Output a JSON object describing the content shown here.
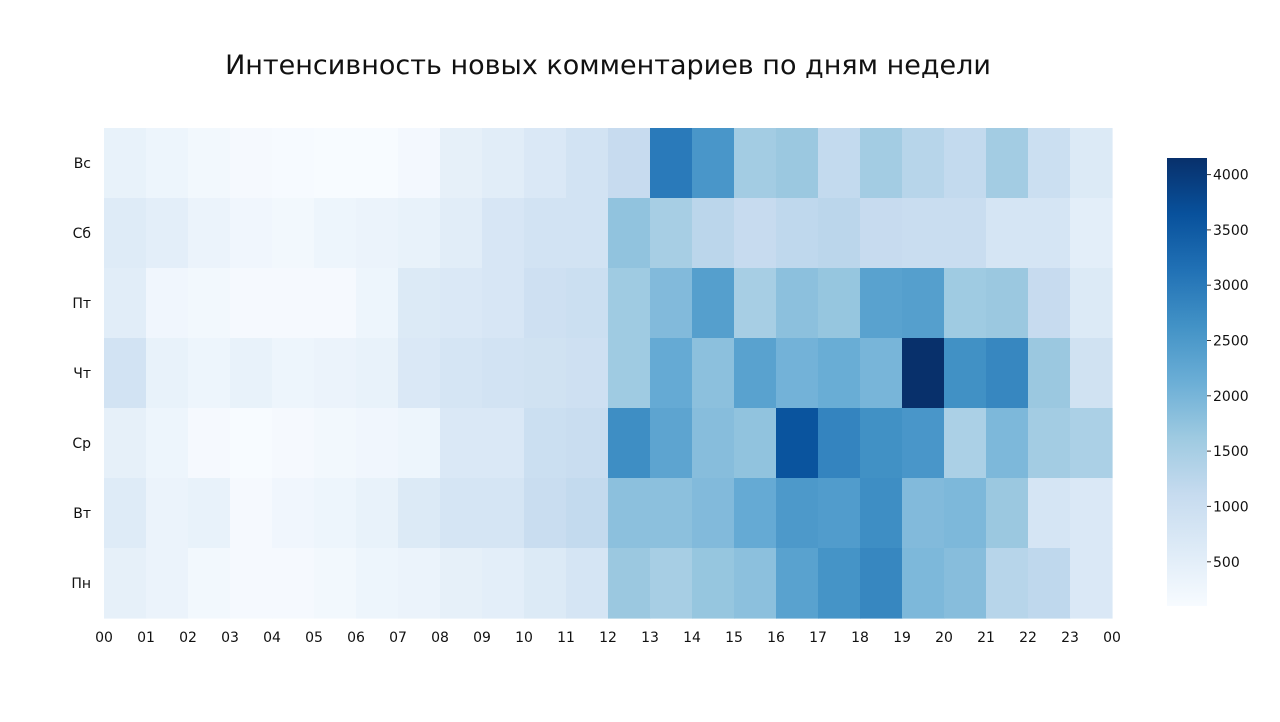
{
  "chart_data": {
    "type": "heatmap",
    "title": "Интенсивность новых комментариев по дням недели",
    "xlabel": "",
    "ylabel": "",
    "x_tick_labels": [
      "00",
      "01",
      "02",
      "03",
      "04",
      "05",
      "06",
      "07",
      "08",
      "09",
      "10",
      "11",
      "12",
      "13",
      "14",
      "15",
      "16",
      "17",
      "18",
      "19",
      "20",
      "21",
      "22",
      "23",
      "00"
    ],
    "rows": [
      "Вс",
      "Сб",
      "Пт",
      "Чт",
      "Ср",
      "Вт",
      "Пн"
    ],
    "columns": [
      "00",
      "01",
      "02",
      "03",
      "04",
      "05",
      "06",
      "07",
      "08",
      "09",
      "10",
      "11",
      "12",
      "13",
      "14",
      "15",
      "16",
      "17",
      "18",
      "19",
      "20",
      "21",
      "22",
      "23"
    ],
    "values": [
      [
        400,
        300,
        200,
        150,
        120,
        100,
        100,
        180,
        450,
        550,
        700,
        850,
        1100,
        3000,
        2550,
        1550,
        1650,
        1150,
        1550,
        1300,
        1150,
        1550,
        1000,
        650
      ],
      [
        600,
        500,
        350,
        250,
        200,
        300,
        350,
        400,
        550,
        750,
        850,
        850,
        1750,
        1500,
        1250,
        1100,
        1200,
        1250,
        1100,
        1050,
        1050,
        800,
        800,
        500
      ],
      [
        550,
        250,
        200,
        150,
        150,
        150,
        300,
        650,
        700,
        750,
        950,
        1000,
        1600,
        1900,
        2400,
        1500,
        1800,
        1700,
        2350,
        2400,
        1600,
        1650,
        1100,
        650
      ],
      [
        850,
        400,
        300,
        400,
        300,
        350,
        400,
        700,
        800,
        850,
        900,
        950,
        1600,
        2200,
        1800,
        2350,
        2050,
        2150,
        2000,
        4150,
        2650,
        2800,
        1650,
        900
      ],
      [
        450,
        300,
        150,
        100,
        150,
        200,
        250,
        300,
        700,
        700,
        1000,
        1050,
        2700,
        2300,
        1850,
        1750,
        3600,
        2850,
        2650,
        2550,
        1450,
        1950,
        1550,
        1450
      ],
      [
        600,
        350,
        400,
        150,
        250,
        300,
        400,
        650,
        800,
        800,
        1050,
        1150,
        1800,
        1800,
        1900,
        2200,
        2500,
        2450,
        2700,
        1900,
        1950,
        1650,
        800,
        700
      ],
      [
        450,
        350,
        200,
        150,
        150,
        200,
        300,
        350,
        450,
        500,
        650,
        800,
        1650,
        1500,
        1700,
        1800,
        2350,
        2600,
        2800,
        1950,
        1850,
        1300,
        1200,
        700
      ]
    ],
    "colorbar": {
      "min": 100,
      "max": 4150,
      "ticks": [
        500,
        1000,
        1500,
        2000,
        2500,
        3000,
        3500,
        4000
      ],
      "colors": [
        "#f7fbff",
        "#deebf7",
        "#c6dbef",
        "#9ecae1",
        "#6baed6",
        "#4292c6",
        "#2171b5",
        "#08519c",
        "#08306b"
      ]
    }
  }
}
